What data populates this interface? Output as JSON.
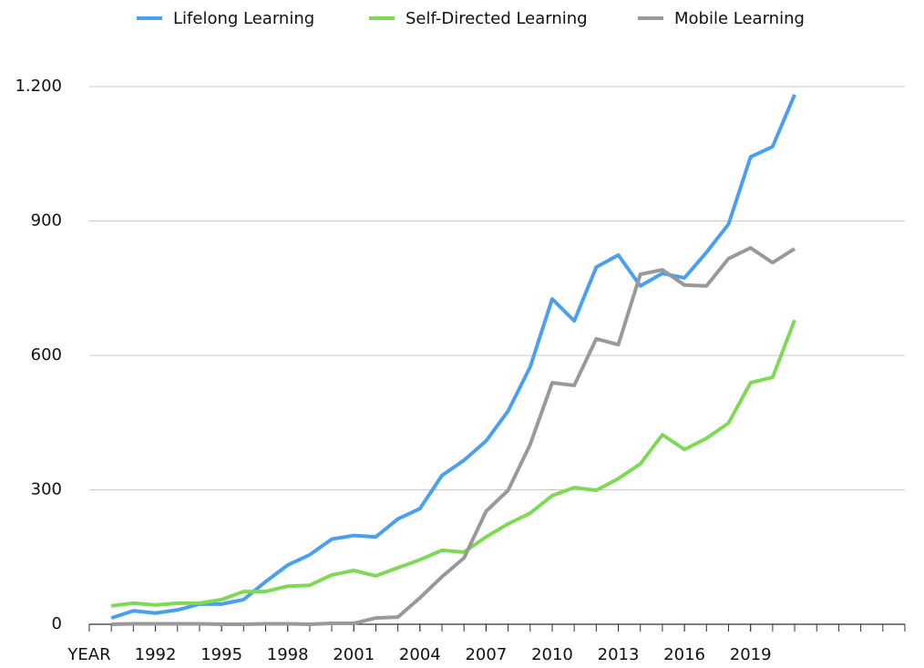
{
  "chart_data": {
    "type": "line",
    "x": [
      1990,
      1991,
      1992,
      1993,
      1994,
      1995,
      1996,
      1997,
      1998,
      1999,
      2000,
      2001,
      2002,
      2003,
      2004,
      2005,
      2006,
      2007,
      2008,
      2009,
      2010,
      2011,
      2012,
      2013,
      2014,
      2015,
      2016,
      2017,
      2018,
      2019,
      2020,
      2021
    ],
    "series": [
      {
        "name": "Lifelong Learning",
        "color": "#4a9ff0",
        "values": [
          14,
          30,
          25,
          32,
          45,
          45,
          55,
          95,
          132,
          155,
          190,
          198,
          195,
          235,
          258,
          332,
          366,
          409,
          476,
          574,
          726,
          677,
          797,
          824,
          755,
          783,
          773,
          830,
          893,
          1043,
          1066,
          1182
        ]
      },
      {
        "name": "Self-Directed Learning",
        "color": "#7ed957",
        "values": [
          41,
          47,
          43,
          47,
          47,
          55,
          73,
          73,
          85,
          87,
          110,
          120,
          108,
          126,
          144,
          165,
          161,
          195,
          224,
          248,
          287,
          305,
          299,
          325,
          358,
          423,
          390,
          415,
          449,
          539,
          551,
          679
        ]
      },
      {
        "name": "Mobile Learning",
        "color": "#999999",
        "values": [
          0,
          1,
          1,
          1,
          1,
          0,
          0,
          1,
          1,
          0,
          2,
          2,
          14,
          16,
          59,
          106,
          148,
          252,
          299,
          401,
          539,
          533,
          637,
          624,
          781,
          791,
          757,
          755,
          816,
          840,
          807,
          838
        ]
      }
    ],
    "xlim": [
      1989,
      2026
    ],
    "xticks": [
      {
        "value": 1989,
        "label": "YEAR"
      },
      1992,
      1995,
      1998,
      2001,
      2004,
      2007,
      2010,
      2013,
      2016,
      2019
    ],
    "ylim": [
      0,
      1200
    ],
    "yticks": [
      0,
      300,
      600,
      900,
      {
        "value": 1200,
        "label": "1.200"
      }
    ],
    "grid": true,
    "legend": "top"
  }
}
